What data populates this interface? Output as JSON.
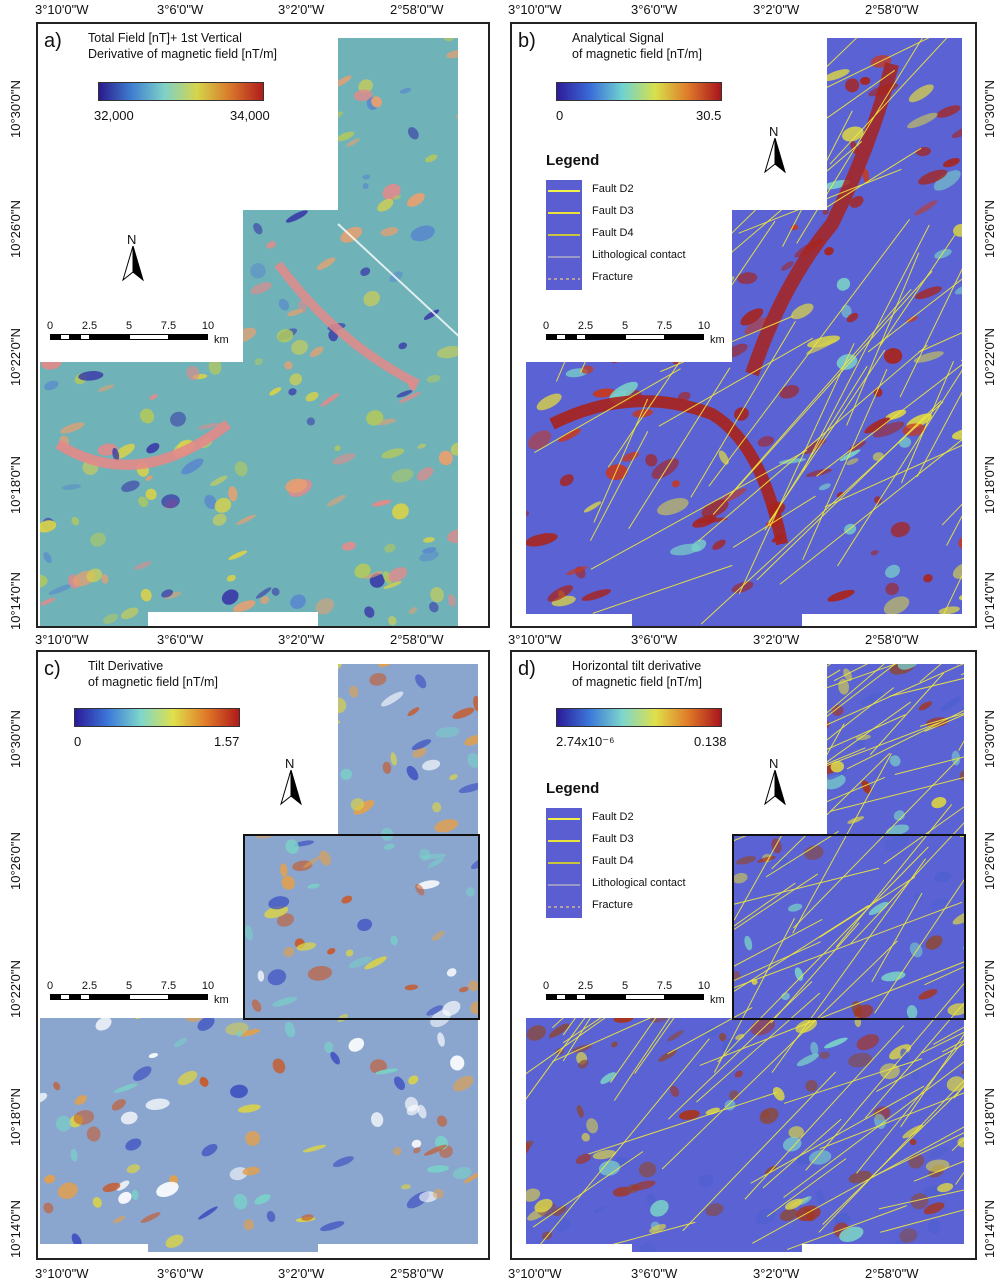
{
  "axes": {
    "lon_ticks": [
      "3°10'0\"W",
      "3°6'0\"W",
      "3°2'0\"W",
      "2°58'0\"W"
    ],
    "lat_ticks": [
      "10°30'0\"N",
      "10°26'0\"N",
      "10°22'0\"N",
      "10°18'0\"N",
      "10°14'0\"N"
    ]
  },
  "panels": [
    {
      "label": "a)",
      "title_line1": "Total Field [nT]+ 1st Vertical",
      "title_line2": "Derivative of magnetic field [nT/m]",
      "cbar_min": "32,000",
      "cbar_max": "34,000",
      "colorbar": [
        "#2a1a8c",
        "#3f7fd0",
        "#7ed2c8",
        "#d6d44a",
        "#d8782a",
        "#b01c1c"
      ],
      "has_legend": false
    },
    {
      "label": "b)",
      "title_line1": "Analytical Signal",
      "title_line2": "of magnetic field [nT/m]",
      "cbar_min": "0",
      "cbar_max": "30.5",
      "colorbar": [
        "#2e1c9a",
        "#3a6bd8",
        "#6fd3d0",
        "#d8e04a",
        "#de7a2a",
        "#a8141c"
      ],
      "has_legend": true
    },
    {
      "label": "c)",
      "title_line1": "Tilt Derivative",
      "title_line2": "of magnetic field [nT/m]",
      "cbar_min": "0",
      "cbar_max": "1.57",
      "colorbar": [
        "#2a1a9a",
        "#3c78d8",
        "#7dd6cc",
        "#dfe04a",
        "#e07a28",
        "#b01a1a"
      ],
      "has_legend": false
    },
    {
      "label": "d)",
      "title_line1": "Horizontal tilt derivative",
      "title_line2": "of magnetic field [nT/m]",
      "cbar_min": "2.74x10⁻⁶",
      "cbar_max": "0.138",
      "colorbar": [
        "#2a1a9a",
        "#3c78d8",
        "#7dd6cc",
        "#dfe04a",
        "#e07a28",
        "#a8141c"
      ],
      "has_legend": true
    }
  ],
  "north_label": "N",
  "scale_bar": {
    "ticks": [
      "0",
      "2.5",
      "5",
      "7.5",
      "10"
    ],
    "unit": "km"
  },
  "legend": {
    "title": "Legend",
    "items": [
      {
        "label": "Fault D2",
        "color": "#f4f04a"
      },
      {
        "label": "Fault D3",
        "color": "#e8e23a"
      },
      {
        "label": "Fault D4",
        "color": "#c9c43a"
      },
      {
        "label": "Lithological contact",
        "color": "#9a9ac8"
      },
      {
        "label": "Fracture",
        "color": "#b8a0a0"
      }
    ]
  },
  "colors": {
    "map_blue": "#5a62d4",
    "map_teal": "#6cc0c4",
    "map_yellow": "#d8d24a",
    "map_pink": "#e48a8a",
    "map_red": "#a8241c",
    "fault_yellow": "#f0ea3a"
  }
}
